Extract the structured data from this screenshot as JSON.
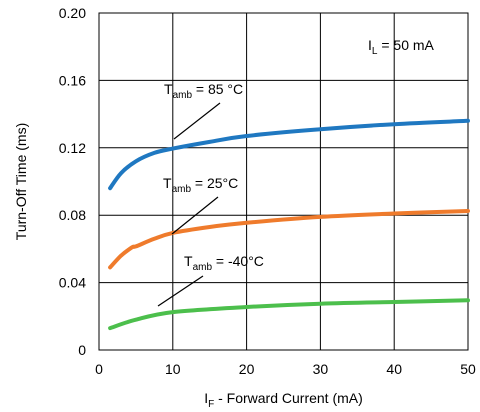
{
  "chart_data": {
    "type": "line",
    "xlabel_main": "I",
    "xlabel_sub": "F",
    "xlabel_rest": " - Forward Current (mA)",
    "ylabel": "Turn-Off Time (ms)",
    "xlim": [
      0,
      50
    ],
    "ylim": [
      0,
      0.2
    ],
    "x_ticks": [
      "0",
      "10",
      "20",
      "30",
      "40",
      "50"
    ],
    "y_ticks": [
      "0",
      "0.04",
      "0.08",
      "0.12",
      "0.16",
      "0.20"
    ],
    "grid": true,
    "condition": {
      "main": "I",
      "sub": "L",
      "rest": " = 50 mA"
    },
    "series": [
      {
        "label_main": "T",
        "label_sub": "amb",
        "label_rest": " = 85 °C",
        "color": "#1f78c1",
        "points": [
          [
            1.5,
            0.096
          ],
          [
            3,
            0.105
          ],
          [
            5,
            0.112
          ],
          [
            7.5,
            0.117
          ],
          [
            10,
            0.1195
          ],
          [
            15,
            0.1235
          ],
          [
            20,
            0.127
          ],
          [
            30,
            0.131
          ],
          [
            40,
            0.134
          ],
          [
            50,
            0.136
          ]
        ]
      },
      {
        "label_main": "T",
        "label_sub": "amb",
        "label_rest": " = 25°C",
        "color": "#ef7b2c",
        "points": [
          [
            1.5,
            0.049
          ],
          [
            3,
            0.056
          ],
          [
            4.5,
            0.061
          ],
          [
            5,
            0.0615
          ],
          [
            7.5,
            0.066
          ],
          [
            10,
            0.0695
          ],
          [
            15,
            0.073
          ],
          [
            20,
            0.0755
          ],
          [
            30,
            0.079
          ],
          [
            40,
            0.081
          ],
          [
            50,
            0.0825
          ]
        ]
      },
      {
        "label_main": "T",
        "label_sub": "amb",
        "label_rest": " = -40°C",
        "color": "#4cbf4c",
        "points": [
          [
            1.5,
            0.013
          ],
          [
            5,
            0.018
          ],
          [
            10,
            0.0225
          ],
          [
            20,
            0.0255
          ],
          [
            30,
            0.0275
          ],
          [
            40,
            0.0285
          ],
          [
            50,
            0.0295
          ]
        ]
      }
    ]
  }
}
